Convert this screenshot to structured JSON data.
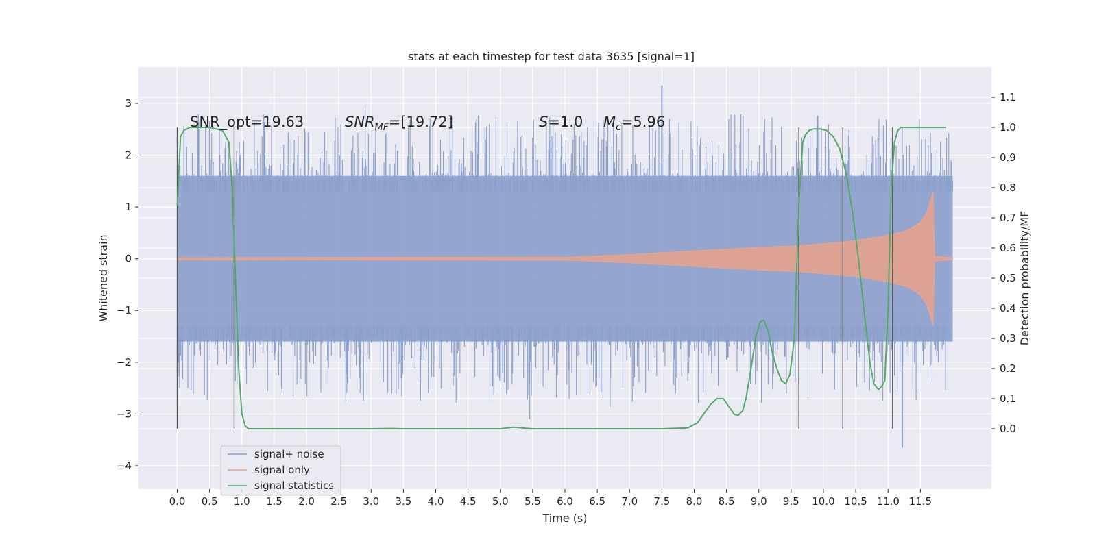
{
  "chart_data": {
    "type": "line",
    "title": "stats at each timestep for test data 3635 [signal=1]",
    "xlabel": "Time (s)",
    "ylabel_left": "Whitened strain",
    "ylabel_right": "Detection probability/MF",
    "xlim": [
      -0.6,
      12.6
    ],
    "ylim_left": [
      -4.45,
      3.7
    ],
    "ylim_right": [
      -0.2,
      1.2
    ],
    "x_ticks": [
      "0.0",
      "0.5",
      "1.0",
      "1.5",
      "2.0",
      "2.5",
      "3.0",
      "3.5",
      "4.0",
      "4.5",
      "5.0",
      "5.5",
      "6.0",
      "6.5",
      "7.0",
      "7.5",
      "8.0",
      "8.5",
      "9.0",
      "9.5",
      "10.0",
      "10.5",
      "11.0",
      "11.5"
    ],
    "y_left_ticks": [
      "3",
      "2",
      "1",
      "0",
      "−1",
      "−2",
      "−3",
      "−4"
    ],
    "y_right_ticks": [
      "1.1",
      "1.0",
      "0.9",
      "0.8",
      "0.7",
      "0.6",
      "0.5",
      "0.4",
      "0.3",
      "0.2",
      "0.1",
      "0.0"
    ],
    "grid": true,
    "legend_position": "lower-left",
    "annotations": [
      {
        "text": "SNR_opt=19.63"
      },
      {
        "text": "SNR_MF=[19.72]"
      },
      {
        "text": "S=1.0"
      },
      {
        "text": "M_c=5.96"
      }
    ],
    "vertical_markers_s": [
      0.0,
      0.88,
      9.62,
      10.3,
      11.07
    ],
    "series": [
      {
        "name": "signal+ noise",
        "color": "#8ca0cc",
        "kind": "noise-band",
        "t_range": [
          0.0,
          12.0
        ],
        "typical_envelope": [
          -1.6,
          1.6
        ],
        "extreme_values": [
          3.35,
          -3.65
        ]
      },
      {
        "name": "signal only",
        "color": "#e6a38c",
        "kind": "chirp",
        "t_range": [
          0.0,
          12.0
        ],
        "envelope_t": [
          0.0,
          6.0,
          7.0,
          8.0,
          9.0,
          9.6,
          10.0,
          10.5,
          11.0,
          11.3,
          11.5,
          11.6,
          11.65,
          11.7,
          11.72,
          12.0
        ],
        "envelope_amp": [
          0.02,
          0.03,
          0.08,
          0.15,
          0.22,
          0.25,
          0.29,
          0.35,
          0.45,
          0.55,
          0.7,
          0.9,
          1.1,
          1.3,
          0.05,
          0.02
        ]
      },
      {
        "name": "signal statistics",
        "color": "#55a868",
        "kind": "line",
        "x": [
          0.0,
          0.05,
          0.1,
          0.2,
          0.3,
          0.5,
          0.7,
          0.8,
          0.85,
          0.9,
          0.95,
          1.0,
          1.05,
          1.1,
          1.2,
          2.0,
          3.0,
          3.3,
          3.5,
          4.0,
          4.5,
          5.0,
          5.2,
          5.5,
          6.0,
          7.0,
          7.5,
          7.9,
          8.05,
          8.15,
          8.25,
          8.35,
          8.45,
          8.55,
          8.62,
          8.68,
          8.75,
          8.8,
          8.88,
          8.95,
          9.02,
          9.08,
          9.15,
          9.2,
          9.28,
          9.35,
          9.42,
          9.48,
          9.55,
          9.62,
          9.68,
          9.72,
          9.78,
          9.85,
          9.95,
          10.05,
          10.15,
          10.25,
          10.35,
          10.45,
          10.55,
          10.65,
          10.72,
          10.78,
          10.85,
          10.9,
          10.95,
          11.0,
          11.05,
          11.1,
          11.15,
          11.2,
          11.3,
          11.5,
          11.7,
          11.9
        ],
        "y": [
          0.74,
          0.97,
          0.99,
          1.0,
          1.0,
          1.0,
          0.99,
          0.95,
          0.8,
          0.5,
          0.2,
          0.05,
          0.01,
          0.0,
          0.0,
          0.0,
          0.0,
          0.001,
          0.0,
          0.0,
          0.0,
          0.0,
          0.005,
          0.0,
          0.0,
          0.0,
          0.0,
          0.003,
          0.02,
          0.05,
          0.08,
          0.1,
          0.1,
          0.07,
          0.048,
          0.045,
          0.06,
          0.1,
          0.2,
          0.3,
          0.355,
          0.36,
          0.32,
          0.26,
          0.2,
          0.16,
          0.15,
          0.18,
          0.3,
          0.75,
          0.95,
          0.975,
          0.99,
          0.995,
          0.995,
          0.99,
          0.97,
          0.93,
          0.85,
          0.72,
          0.55,
          0.35,
          0.22,
          0.15,
          0.13,
          0.14,
          0.16,
          0.4,
          0.8,
          0.95,
          0.99,
          1.0,
          1.0,
          1.0,
          1.0,
          1.0
        ]
      }
    ]
  }
}
